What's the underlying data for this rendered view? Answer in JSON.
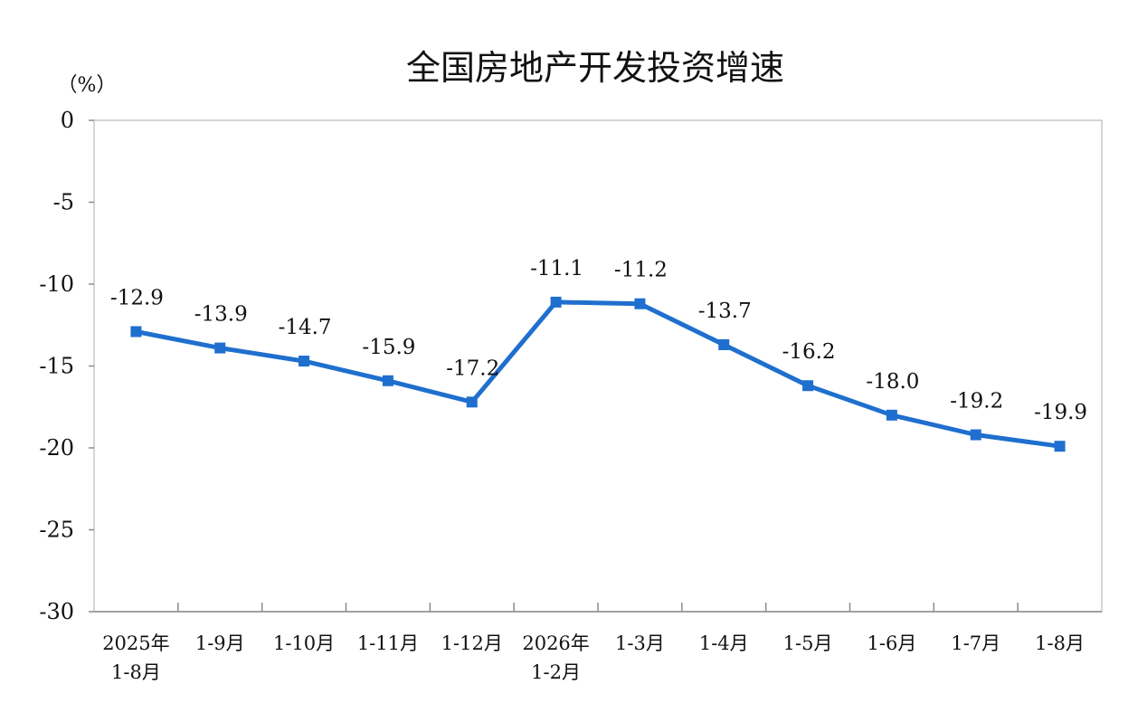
{
  "chart_data": {
    "type": "line",
    "title": "全国房地产开发投资增速",
    "unit_label": "（%）",
    "xlabel": "",
    "ylabel": "",
    "ylim": [
      -30,
      0
    ],
    "yticks": [
      0,
      -5,
      -10,
      -15,
      -20,
      -25,
      -30
    ],
    "ytick_labels": [
      "0",
      "-5",
      "-10",
      "-15",
      "-20",
      "-25",
      "-30"
    ],
    "grid": false,
    "categories": [
      [
        "2025年",
        "1-8月"
      ],
      [
        "1-9月"
      ],
      [
        "1-10月"
      ],
      [
        "1-11月"
      ],
      [
        "1-12月"
      ],
      [
        "2026年",
        "1-2月"
      ],
      [
        "1-3月"
      ],
      [
        "1-4月"
      ],
      [
        "1-5月"
      ],
      [
        "1-6月"
      ],
      [
        "1-7月"
      ],
      [
        "1-8月"
      ]
    ],
    "series": [
      {
        "values": [
          -12.9,
          -13.9,
          -14.7,
          -15.9,
          -17.2,
          -11.1,
          -11.2,
          -13.7,
          -16.2,
          -18.0,
          -19.2,
          -19.9
        ],
        "data_labels": [
          "-12.9",
          "-13.9",
          "-14.7",
          "-15.9",
          "-17.2",
          "-11.1",
          "-11.2",
          "-13.7",
          "-16.2",
          "-18.0",
          "-19.2",
          "-19.9"
        ],
        "color": "#1f6fce",
        "marker": "square"
      }
    ]
  }
}
